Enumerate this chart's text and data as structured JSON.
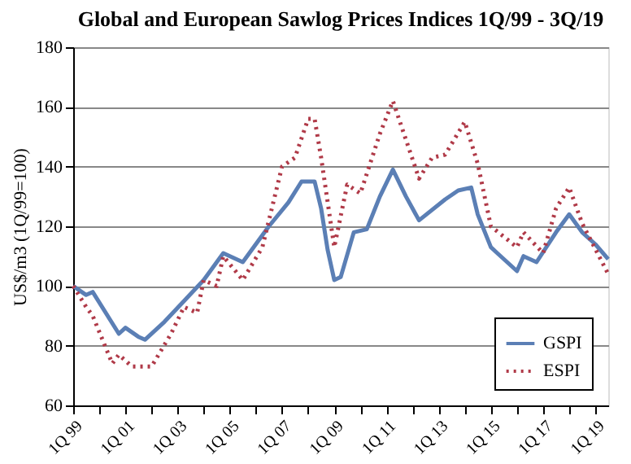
{
  "chart_data": {
    "type": "line",
    "title": "Global and European Sawlog Prices Indices 1Q/99 - 3Q/19",
    "ylabel": "US$/m3 (1Q/99=100)",
    "xlim": [
      "1999-01",
      "2019-07"
    ],
    "ylim": [
      60,
      180
    ],
    "yticks": [
      60,
      80,
      100,
      120,
      140,
      160,
      180
    ],
    "xticks": [
      {
        "value": "1999-01",
        "label": "1Q 99"
      },
      {
        "value": "2000-01",
        "label": null
      },
      {
        "value": "2001-01",
        "label": "1Q 01"
      },
      {
        "value": "2002-01",
        "label": null
      },
      {
        "value": "2003-01",
        "label": "1Q 03"
      },
      {
        "value": "2004-01",
        "label": null
      },
      {
        "value": "2005-01",
        "label": "1Q 05"
      },
      {
        "value": "2006-01",
        "label": null
      },
      {
        "value": "2007-01",
        "label": "1Q 07"
      },
      {
        "value": "2008-01",
        "label": null
      },
      {
        "value": "2009-01",
        "label": "1Q 09"
      },
      {
        "value": "2010-01",
        "label": null
      },
      {
        "value": "2011-01",
        "label": "1Q 11"
      },
      {
        "value": "2012-01",
        "label": null
      },
      {
        "value": "2013-01",
        "label": "1Q 13"
      },
      {
        "value": "2014-01",
        "label": null
      },
      {
        "value": "2015-01",
        "label": "1Q 15"
      },
      {
        "value": "2016-01",
        "label": null
      },
      {
        "value": "2017-01",
        "label": "1Q 17"
      },
      {
        "value": "2018-01",
        "label": null
      },
      {
        "value": "2019-01",
        "label": "1Q 19"
      }
    ],
    "grid": "y",
    "legend": "bottom right",
    "marker": "none",
    "series": [
      {
        "name": "GSPI",
        "color": "#5b7fb5",
        "line_style": "solid",
        "x": [
          "1999-01",
          "1999-07",
          "1999-10",
          "2000-10",
          "2001-01",
          "2001-07",
          "2001-10",
          "2002-07",
          "2003-04",
          "2004-01",
          "2004-10",
          "2005-07",
          "2006-07",
          "2007-04",
          "2007-10",
          "2008-04",
          "2008-07",
          "2008-10",
          "2009-01",
          "2009-04",
          "2009-10",
          "2010-04",
          "2010-10",
          "2011-04",
          "2011-10",
          "2012-04",
          "2013-04",
          "2013-10",
          "2014-04",
          "2014-07",
          "2015-01",
          "2015-04",
          "2016-01",
          "2016-04",
          "2016-10",
          "2017-07",
          "2018-01",
          "2018-07",
          "2019-01",
          "2019-07"
        ],
        "values": [
          100,
          97,
          98,
          84,
          86,
          83,
          82,
          88,
          95,
          102,
          111,
          108,
          120,
          128,
          135,
          135,
          126,
          112,
          102,
          103,
          118,
          119,
          130,
          139,
          130,
          122,
          129,
          132,
          133,
          124,
          113,
          111,
          105,
          110,
          108,
          118,
          124,
          118,
          114,
          109
        ]
      },
      {
        "name": "ESPI",
        "color": "#b03a48",
        "line_style": "dotted",
        "x": [
          "1999-01",
          "1999-07",
          "1999-10",
          "2000-07",
          "2000-10",
          "2001-04",
          "2002-01",
          "2002-10",
          "2003-04",
          "2003-10",
          "2004-01",
          "2004-07",
          "2004-10",
          "2005-07",
          "2006-04",
          "2007-01",
          "2007-07",
          "2008-01",
          "2008-04",
          "2008-07",
          "2009-01",
          "2009-07",
          "2010-01",
          "2010-10",
          "2011-04",
          "2012-04",
          "2012-10",
          "2013-04",
          "2014-01",
          "2014-07",
          "2015-01",
          "2016-01",
          "2016-04",
          "2017-01",
          "2017-07",
          "2018-01",
          "2018-07",
          "2019-07"
        ],
        "values": [
          100,
          93,
          90,
          74,
          77,
          73,
          73,
          84,
          93,
          91,
          102,
          100,
          110,
          102,
          113,
          140,
          143,
          156,
          156,
          143,
          113,
          134,
          131,
          151,
          162,
          136,
          143,
          144,
          155,
          141,
          120,
          113,
          118,
          111,
          126,
          133,
          121,
          104
        ]
      }
    ]
  }
}
